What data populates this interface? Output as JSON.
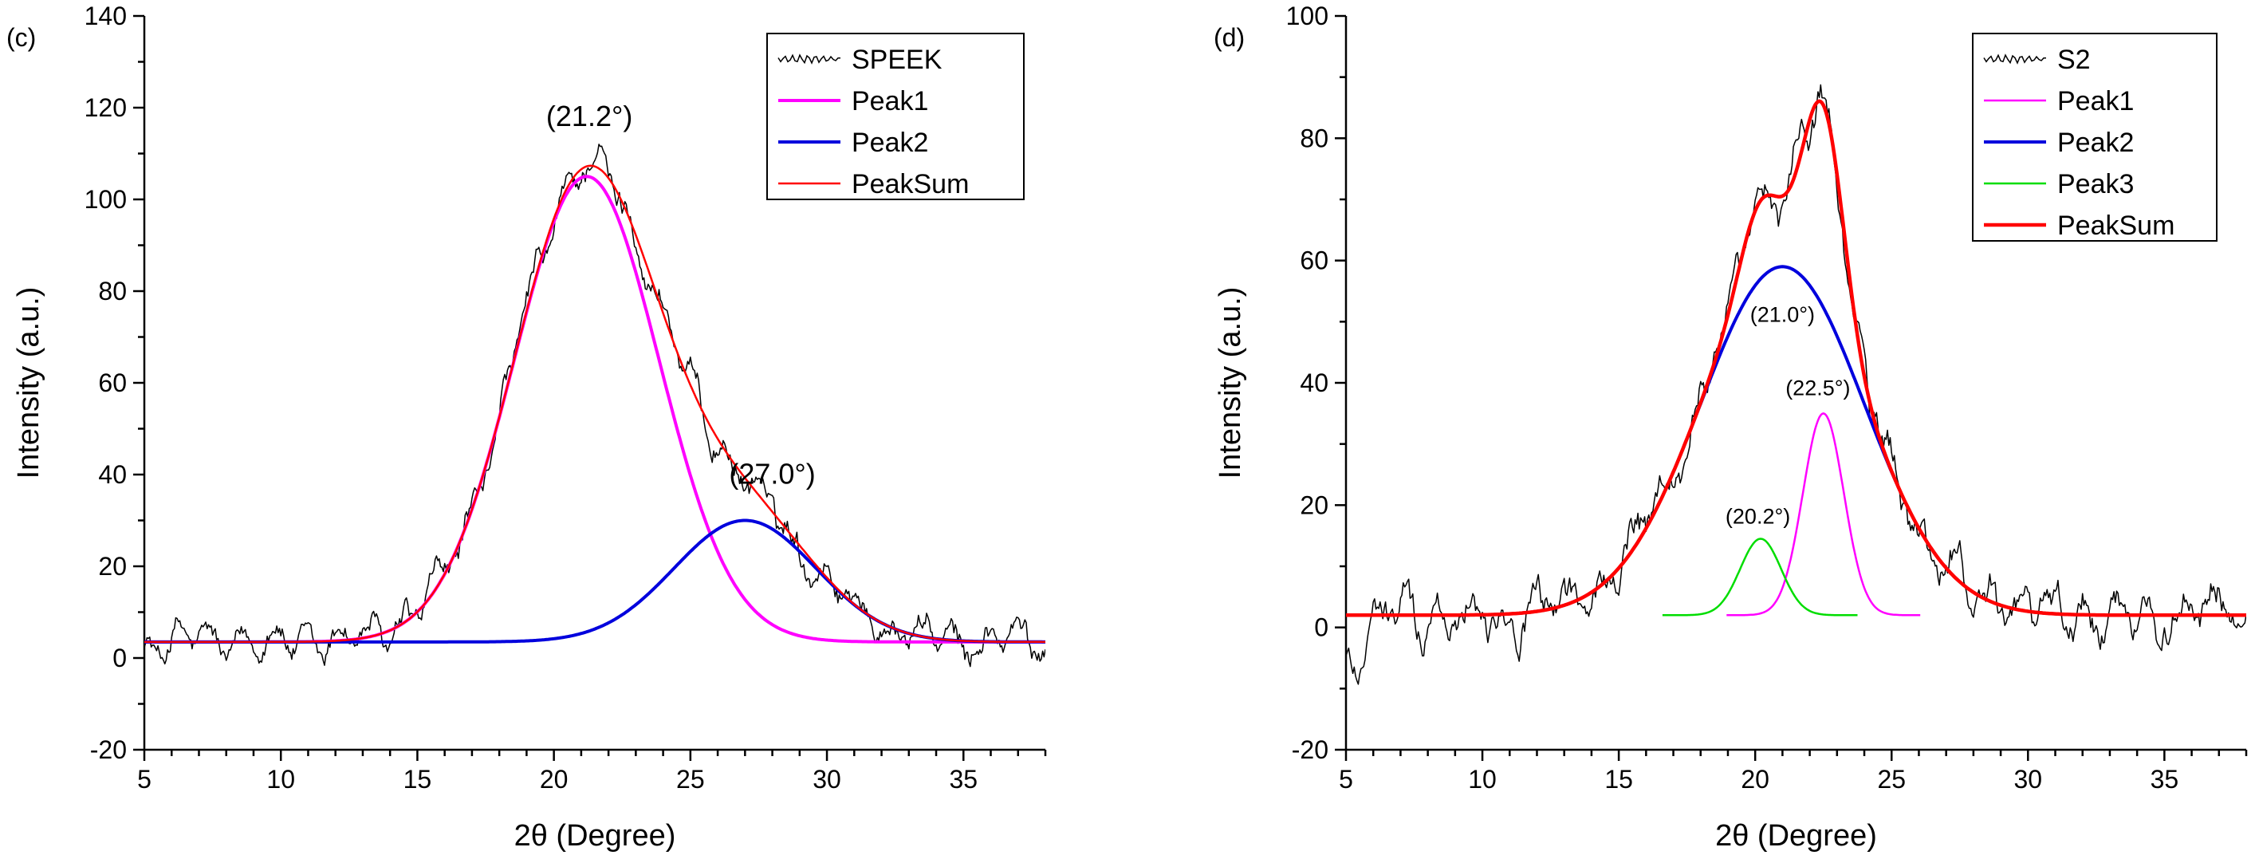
{
  "chart_data": [
    {
      "type": "line",
      "panel_label": "(c)",
      "xlabel": "2θ (Degree)",
      "ylabel": "Intensity (a.u.)",
      "xlim": [
        5,
        38
      ],
      "ylim": [
        -20,
        140
      ],
      "xticks": [
        5,
        10,
        15,
        20,
        25,
        30,
        35
      ],
      "yticks": [
        -20,
        0,
        20,
        40,
        60,
        80,
        100,
        120,
        140
      ],
      "legend_position": "top-right",
      "baseline": 3.5,
      "series": [
        {
          "name": "SPEEK",
          "color": "#000000",
          "kind": "noisy",
          "width": 1.5
        },
        {
          "name": "Peak1",
          "color": "#ff00ff",
          "kind": "gauss",
          "center": 21.2,
          "amplitude": 101.5,
          "sigma": 2.65,
          "width": 4
        },
        {
          "name": "Peak2",
          "color": "#0000dd",
          "kind": "gauss",
          "center": 27.0,
          "amplitude": 26.5,
          "sigma": 2.6,
          "width": 4
        },
        {
          "name": "PeakSum",
          "color": "#ff0000",
          "kind": "sum",
          "width": 2.5
        }
      ],
      "annotations": [
        {
          "text": "(21.2°)",
          "x": 21.3,
          "y": 116
        },
        {
          "text": "(27.0°)",
          "x": 28.0,
          "y": 38
        }
      ]
    },
    {
      "type": "line",
      "panel_label": "(d)",
      "xlabel": "2θ (Degree)",
      "ylabel": "Intensity (a.u.)",
      "xlim": [
        5,
        38
      ],
      "ylim": [
        -20,
        100
      ],
      "xticks": [
        5,
        10,
        15,
        20,
        25,
        30,
        35
      ],
      "yticks": [
        -20,
        0,
        20,
        40,
        60,
        80,
        100
      ],
      "legend_position": "top-right",
      "baseline": 2,
      "series": [
        {
          "name": "S2",
          "color": "#000000",
          "kind": "noisy",
          "width": 1.5
        },
        {
          "name": "Peak1",
          "color": "#ff00ff",
          "kind": "gauss",
          "center": 22.5,
          "amplitude": 33,
          "sigma": 0.75,
          "width": 2.5
        },
        {
          "name": "Peak2",
          "color": "#0000dd",
          "kind": "gauss",
          "center": 21.0,
          "amplitude": 57,
          "sigma": 3.0,
          "width": 4
        },
        {
          "name": "Peak3",
          "color": "#00dd00",
          "kind": "gauss",
          "center": 20.2,
          "amplitude": 12.5,
          "sigma": 0.75,
          "width": 2.5
        },
        {
          "name": "PeakSum",
          "color": "#ff0000",
          "kind": "sum",
          "width": 4.5
        }
      ],
      "annotations": [
        {
          "text": "(21.0°)",
          "x": 21.0,
          "y": 50
        },
        {
          "text": "(22.5°)",
          "x": 22.3,
          "y": 38
        },
        {
          "text": "(20.2°)",
          "x": 20.1,
          "y": 17
        }
      ]
    }
  ]
}
